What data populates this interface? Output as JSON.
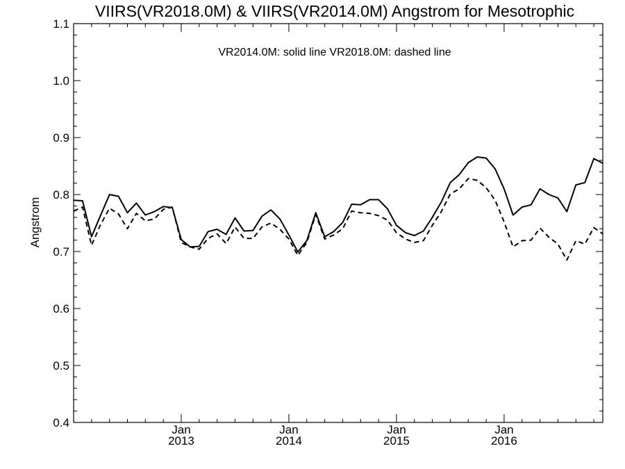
{
  "chart_data": {
    "type": "line",
    "title": "VIIRS(VR2018.0M) & VIIRS(VR2014.0M)  Angstrom for Mesotrophic",
    "xlabel": "",
    "ylabel": "Angstrom",
    "annotation": "VR2014.0M: solid line   VR2018.0M: dashed line",
    "ylim": [
      0.4,
      1.1
    ],
    "yticks": [
      {
        "value": 0.4,
        "label": "0.4"
      },
      {
        "value": 0.5,
        "label": "0.5"
      },
      {
        "value": 0.6,
        "label": "0.6"
      },
      {
        "value": 0.7,
        "label": "0.7"
      },
      {
        "value": 0.8,
        "label": "0.8"
      },
      {
        "value": 0.9,
        "label": "0.9"
      },
      {
        "value": 1.0,
        "label": "1.0"
      },
      {
        "value": 1.1,
        "label": "1.1"
      }
    ],
    "xlim": [
      "2012-01",
      "2016-12"
    ],
    "xticks": [
      {
        "date": "2013-01",
        "month_label": "Jan",
        "year_label": "2013"
      },
      {
        "date": "2014-01",
        "month_label": "Jan",
        "year_label": "2014"
      },
      {
        "date": "2015-01",
        "month_label": "Jan",
        "year_label": "2015"
      },
      {
        "date": "2016-01",
        "month_label": "Jan",
        "year_label": "2016"
      }
    ],
    "grid": false,
    "x": [
      "2012-01",
      "2012-02",
      "2012-03",
      "2012-04",
      "2012-05",
      "2012-06",
      "2012-07",
      "2012-08",
      "2012-09",
      "2012-10",
      "2012-11",
      "2012-12",
      "2013-01",
      "2013-02",
      "2013-03",
      "2013-04",
      "2013-05",
      "2013-06",
      "2013-07",
      "2013-08",
      "2013-09",
      "2013-10",
      "2013-11",
      "2013-12",
      "2014-01",
      "2014-02",
      "2014-03",
      "2014-04",
      "2014-05",
      "2014-06",
      "2014-07",
      "2014-08",
      "2014-09",
      "2014-10",
      "2014-11",
      "2014-12",
      "2015-01",
      "2015-02",
      "2015-03",
      "2015-04",
      "2015-05",
      "2015-06",
      "2015-07",
      "2015-08",
      "2015-09",
      "2015-10",
      "2015-11",
      "2015-12",
      "2016-01",
      "2016-02",
      "2016-03",
      "2016-04",
      "2016-05",
      "2016-06",
      "2016-07",
      "2016-08",
      "2016-09",
      "2016-10",
      "2016-11",
      "2016-12"
    ],
    "series": [
      {
        "style": "solid",
        "color": "#000000",
        "values": [
          0.79,
          0.789,
          0.726,
          0.763,
          0.8,
          0.797,
          0.768,
          0.785,
          0.764,
          0.77,
          0.779,
          0.777,
          0.721,
          0.708,
          0.709,
          0.735,
          0.739,
          0.73,
          0.759,
          0.736,
          0.737,
          0.762,
          0.773,
          0.757,
          0.729,
          0.699,
          0.719,
          0.768,
          0.726,
          0.735,
          0.751,
          0.783,
          0.782,
          0.791,
          0.791,
          0.775,
          0.746,
          0.733,
          0.728,
          0.736,
          0.76,
          0.787,
          0.821,
          0.835,
          0.856,
          0.866,
          0.864,
          0.845,
          0.81,
          0.764,
          0.778,
          0.782,
          0.81,
          0.8,
          0.794,
          0.77,
          0.817,
          0.821,
          0.863,
          0.855
        ]
      },
      {
        "style": "dashed",
        "color": "#000000",
        "values": [
          0.771,
          0.778,
          0.711,
          0.747,
          0.776,
          0.766,
          0.74,
          0.767,
          0.754,
          0.757,
          0.774,
          0.778,
          0.716,
          0.708,
          0.704,
          0.723,
          0.731,
          0.714,
          0.743,
          0.723,
          0.723,
          0.743,
          0.75,
          0.739,
          0.722,
          0.693,
          0.716,
          0.765,
          0.722,
          0.729,
          0.74,
          0.771,
          0.768,
          0.767,
          0.763,
          0.755,
          0.733,
          0.722,
          0.716,
          0.719,
          0.746,
          0.77,
          0.801,
          0.81,
          0.828,
          0.825,
          0.812,
          0.79,
          0.752,
          0.708,
          0.719,
          0.72,
          0.741,
          0.725,
          0.713,
          0.685,
          0.719,
          0.713,
          0.742,
          0.731
        ]
      }
    ]
  }
}
